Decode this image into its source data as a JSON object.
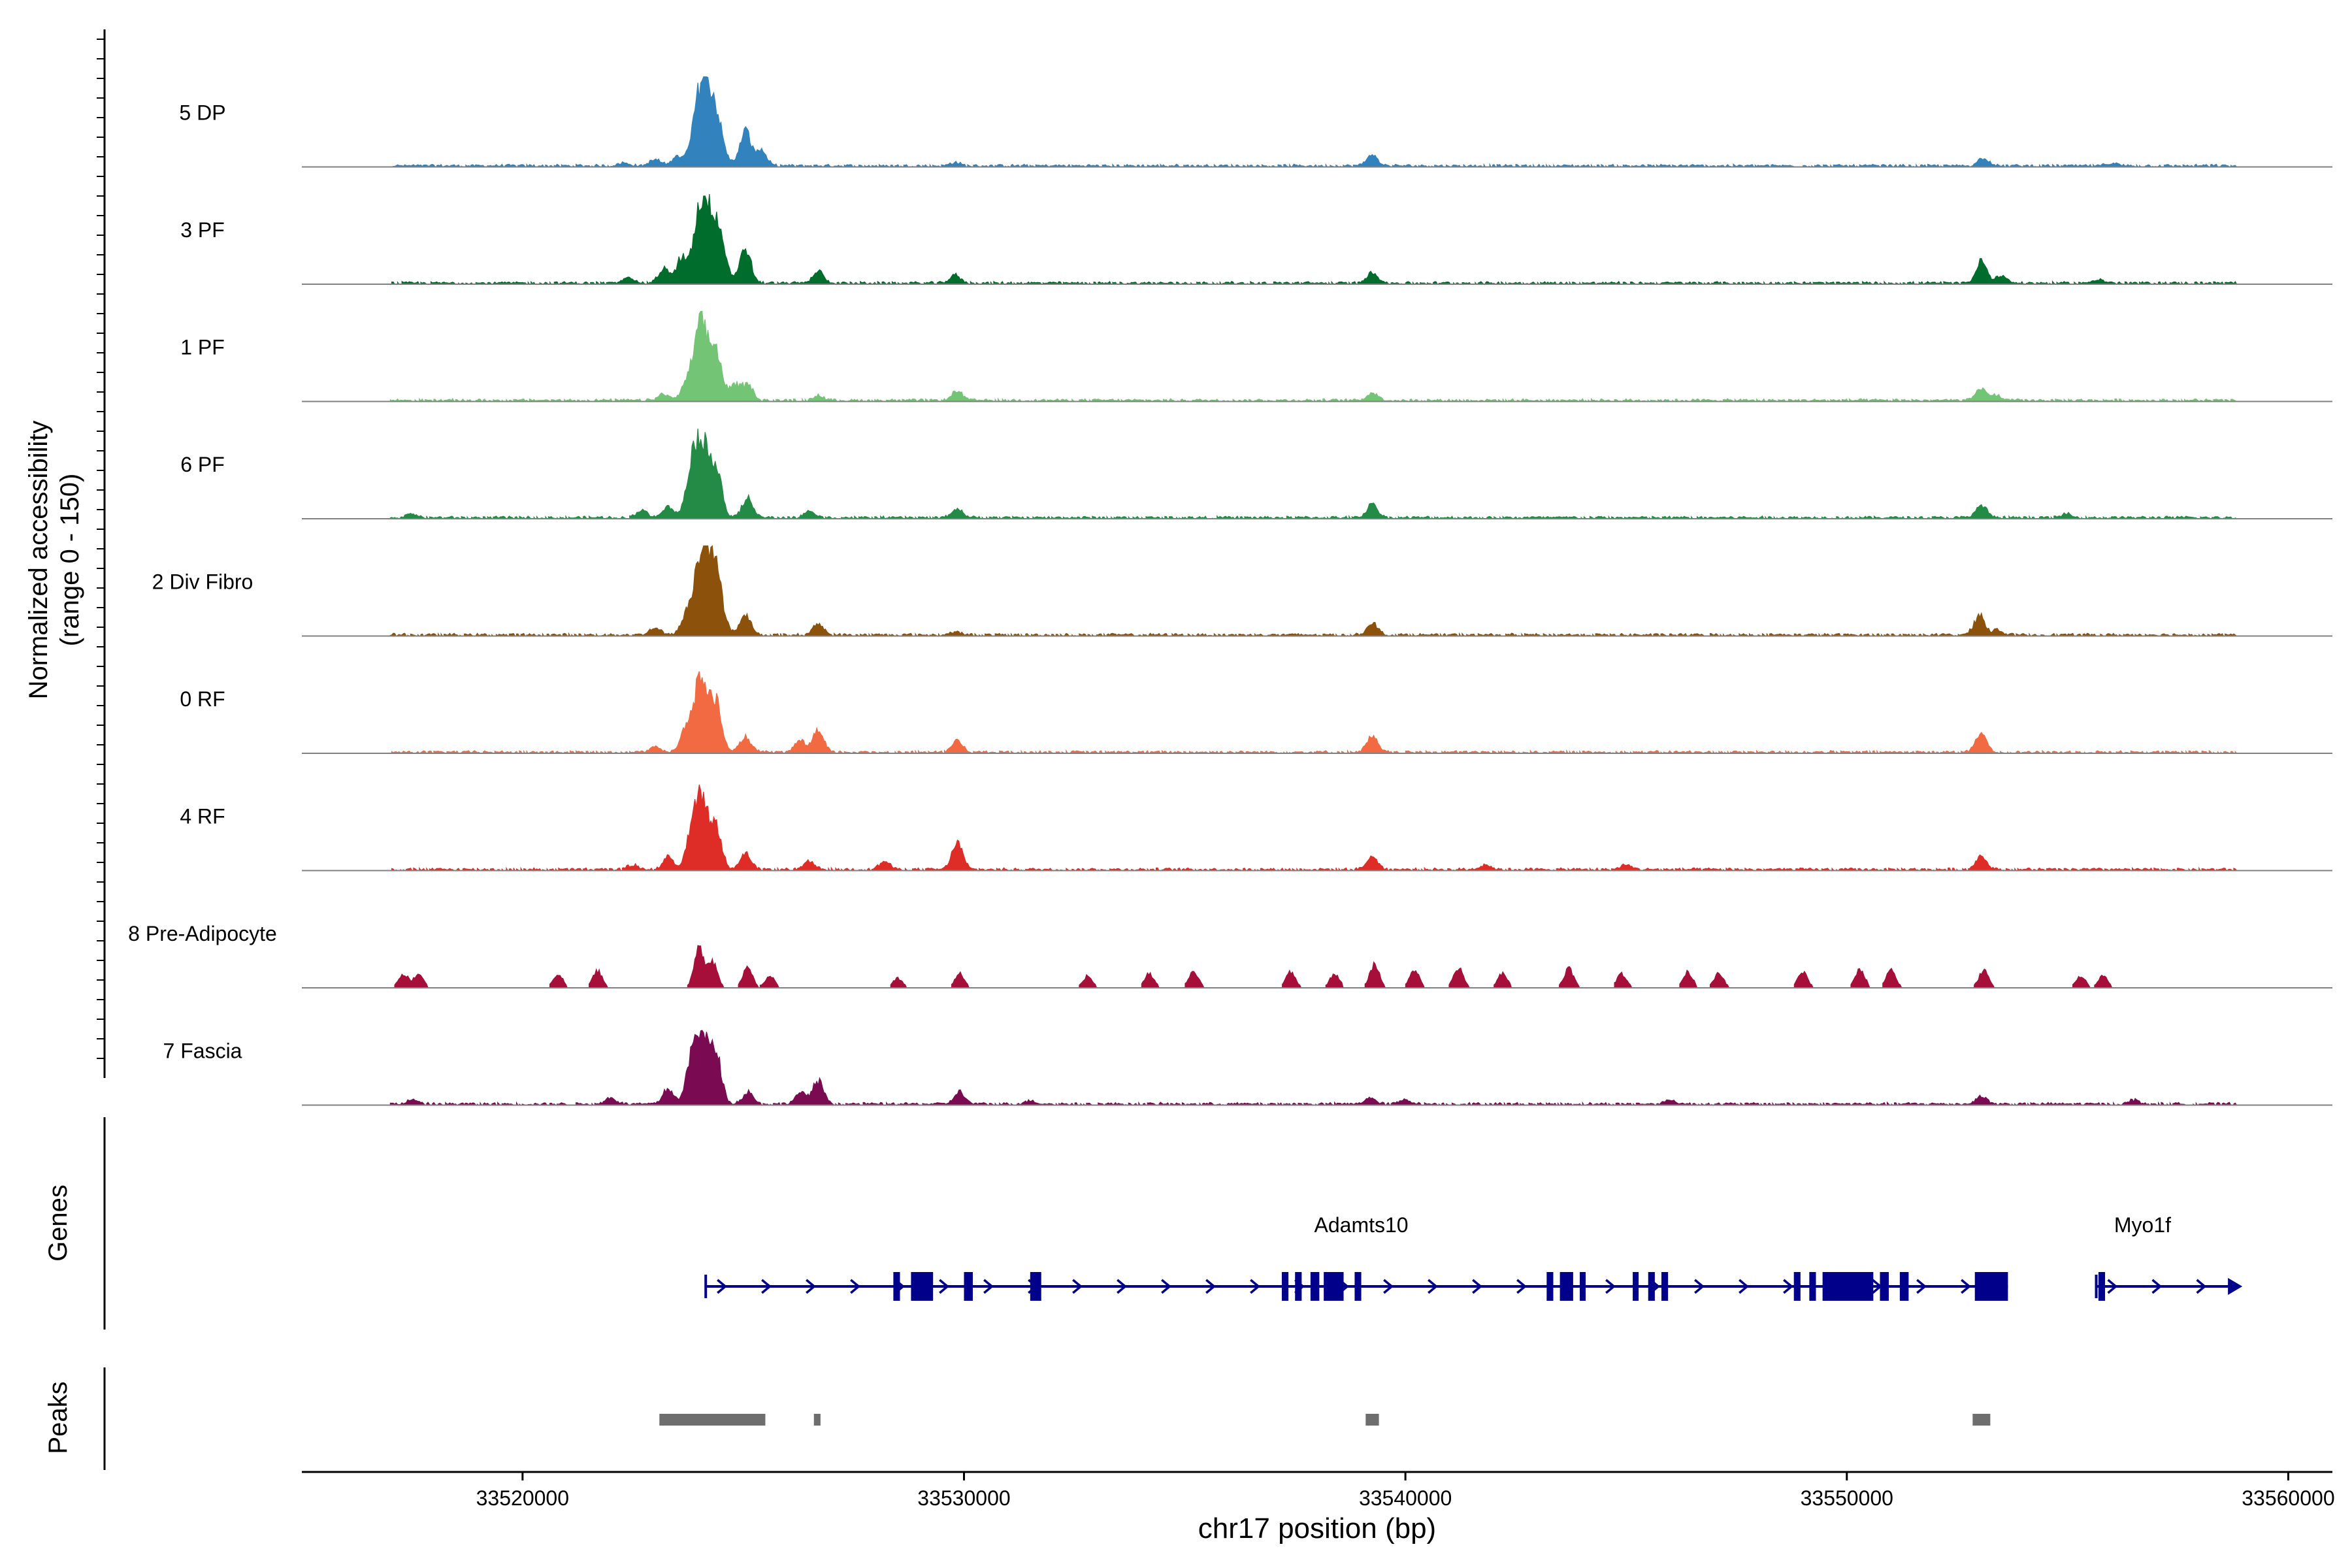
{
  "chart_data": {
    "type": "area",
    "title": "",
    "xlabel": "chr17 position (bp)",
    "ylabel": "Normalized accessibility\n(range 0 - 150)",
    "xlim": [
      33515000,
      33561000
    ],
    "ylim": [
      0,
      150
    ],
    "x_ticks": [
      {
        "value": 33520000,
        "label": "33520000"
      },
      {
        "value": 33530000,
        "label": "33530000"
      },
      {
        "value": 33540000,
        "label": "33540000"
      },
      {
        "value": 33550000,
        "label": "33550000"
      },
      {
        "value": 33560000,
        "label": "33560000"
      }
    ],
    "panel_titles": {
      "genes": "Genes",
      "peaks": "Peaks"
    },
    "tracks": [
      {
        "name": "5 DP",
        "color": "#3182bd",
        "sparse": false,
        "peaks": [
          [
            33522300,
            4
          ],
          [
            33523000,
            8
          ],
          [
            33523500,
            12
          ],
          [
            33524050,
            100
          ],
          [
            33524350,
            65
          ],
          [
            33525050,
            45
          ],
          [
            33525400,
            20
          ],
          [
            33529800,
            4
          ],
          [
            33539250,
            14
          ],
          [
            33553100,
            10
          ],
          [
            33556000,
            3
          ]
        ]
      },
      {
        "name": "3 PF",
        "color": "#006d2c",
        "sparse": false,
        "peaks": [
          [
            33522400,
            8
          ],
          [
            33523200,
            18
          ],
          [
            33523600,
            30
          ],
          [
            33524050,
            100
          ],
          [
            33524400,
            75
          ],
          [
            33525050,
            45
          ],
          [
            33526700,
            15
          ],
          [
            33529800,
            10
          ],
          [
            33539250,
            14
          ],
          [
            33553050,
            28
          ],
          [
            33553500,
            10
          ],
          [
            33555700,
            5
          ]
        ]
      },
      {
        "name": "1 PF",
        "color": "#74c476",
        "sparse": false,
        "peaks": [
          [
            33523200,
            8
          ],
          [
            33523700,
            15
          ],
          [
            33524050,
            100
          ],
          [
            33524400,
            55
          ],
          [
            33524800,
            20
          ],
          [
            33525100,
            20
          ],
          [
            33526700,
            6
          ],
          [
            33529850,
            12
          ],
          [
            33539250,
            10
          ],
          [
            33553050,
            15
          ],
          [
            33553400,
            6
          ]
        ]
      },
      {
        "name": "6 PF",
        "color": "#238b45",
        "sparse": false,
        "peaks": [
          [
            33517500,
            5
          ],
          [
            33522700,
            10
          ],
          [
            33523300,
            15
          ],
          [
            33523800,
            40
          ],
          [
            33524050,
            100
          ],
          [
            33524400,
            60
          ],
          [
            33525100,
            25
          ],
          [
            33526500,
            8
          ],
          [
            33529850,
            12
          ],
          [
            33539250,
            18
          ],
          [
            33553050,
            16
          ],
          [
            33555000,
            5
          ]
        ]
      },
      {
        "name": "2 Div Fibro",
        "color": "#8c510a",
        "sparse": false,
        "peaks": [
          [
            33523000,
            10
          ],
          [
            33523700,
            20
          ],
          [
            33524050,
            100
          ],
          [
            33524350,
            80
          ],
          [
            33525050,
            25
          ],
          [
            33526700,
            15
          ],
          [
            33529800,
            4
          ],
          [
            33539250,
            15
          ],
          [
            33553000,
            25
          ],
          [
            33553400,
            6
          ]
        ]
      },
      {
        "name": "0 RF",
        "color": "#f16a42",
        "sparse": false,
        "peaks": [
          [
            33523000,
            8
          ],
          [
            33523700,
            25
          ],
          [
            33524050,
            95
          ],
          [
            33524400,
            55
          ],
          [
            33525050,
            20
          ],
          [
            33526300,
            15
          ],
          [
            33526700,
            28
          ],
          [
            33529850,
            15
          ],
          [
            33539250,
            20
          ],
          [
            33553050,
            25
          ]
        ]
      },
      {
        "name": "4 RF",
        "color": "#de2d26",
        "sparse": false,
        "peaks": [
          [
            33522500,
            6
          ],
          [
            33523300,
            15
          ],
          [
            33523800,
            25
          ],
          [
            33524050,
            95
          ],
          [
            33524400,
            45
          ],
          [
            33525050,
            20
          ],
          [
            33526500,
            10
          ],
          [
            33528200,
            10
          ],
          [
            33529850,
            35
          ],
          [
            33539250,
            18
          ],
          [
            33541800,
            6
          ],
          [
            33545000,
            6
          ],
          [
            33553050,
            18
          ]
        ]
      },
      {
        "name": "8 Pre-Adipocyte",
        "color": "#a50f3a",
        "sparse": true,
        "peaks": [
          [
            33517300,
            18
          ],
          [
            33517650,
            18
          ],
          [
            33520800,
            18
          ],
          [
            33521700,
            22
          ],
          [
            33524000,
            50
          ],
          [
            33524300,
            35
          ],
          [
            33525100,
            25
          ],
          [
            33525600,
            15
          ],
          [
            33528500,
            12
          ],
          [
            33529900,
            18
          ],
          [
            33532800,
            15
          ],
          [
            33534200,
            18
          ],
          [
            33535200,
            22
          ],
          [
            33537400,
            20
          ],
          [
            33538400,
            18
          ],
          [
            33539300,
            30
          ],
          [
            33540200,
            24
          ],
          [
            33541200,
            25
          ],
          [
            33542200,
            18
          ],
          [
            33543700,
            25
          ],
          [
            33544900,
            18
          ],
          [
            33546400,
            20
          ],
          [
            33547100,
            18
          ],
          [
            33549000,
            20
          ],
          [
            33550300,
            24
          ],
          [
            33551000,
            22
          ],
          [
            33553100,
            22
          ],
          [
            33555300,
            15
          ],
          [
            33555800,
            15
          ]
        ]
      },
      {
        "name": "7 Fascia",
        "color": "#7a0b52",
        "sparse": false,
        "peaks": [
          [
            33517500,
            5
          ],
          [
            33522000,
            8
          ],
          [
            33523300,
            20
          ],
          [
            33523800,
            30
          ],
          [
            33524050,
            95
          ],
          [
            33524400,
            55
          ],
          [
            33525100,
            15
          ],
          [
            33526300,
            15
          ],
          [
            33526700,
            30
          ],
          [
            33529900,
            15
          ],
          [
            33531500,
            4
          ],
          [
            33539200,
            8
          ],
          [
            33540000,
            6
          ],
          [
            33546000,
            5
          ],
          [
            33553050,
            10
          ],
          [
            33556500,
            5
          ]
        ]
      }
    ],
    "genes": [
      {
        "name": "Adamts10",
        "label_x": 33539000,
        "start": 33524150,
        "end": 33553650,
        "strand": "+",
        "exons": [
          [
            33528400,
            33528550
          ],
          [
            33528800,
            33529300
          ],
          [
            33530000,
            33530200
          ],
          [
            33531500,
            33531750
          ],
          [
            33537200,
            33537350
          ],
          [
            33537500,
            33537650
          ],
          [
            33537850,
            33538050
          ],
          [
            33538150,
            33538600
          ],
          [
            33538850,
            33539000
          ],
          [
            33543200,
            33543350
          ],
          [
            33543500,
            33543800
          ],
          [
            33543950,
            33544050
          ],
          [
            33545150,
            33545250
          ],
          [
            33545500,
            33545650
          ],
          [
            33545800,
            33545950
          ],
          [
            33548800,
            33548950
          ],
          [
            33549150,
            33549300
          ],
          [
            33549450,
            33550600
          ],
          [
            33550750,
            33550950
          ],
          [
            33551200,
            33551400
          ],
          [
            33552900,
            33553650
          ]
        ]
      },
      {
        "name": "Myo1f",
        "label_x": 33556700,
        "start": 33555650,
        "end": 33558900,
        "strand": "+",
        "exons": [
          [
            33555700,
            33555850
          ]
        ]
      }
    ],
    "peak_regions": [
      [
        33523100,
        33525500
      ],
      [
        33526600,
        33526750
      ],
      [
        33539100,
        33539400
      ],
      [
        33552850,
        33553250
      ]
    ]
  }
}
